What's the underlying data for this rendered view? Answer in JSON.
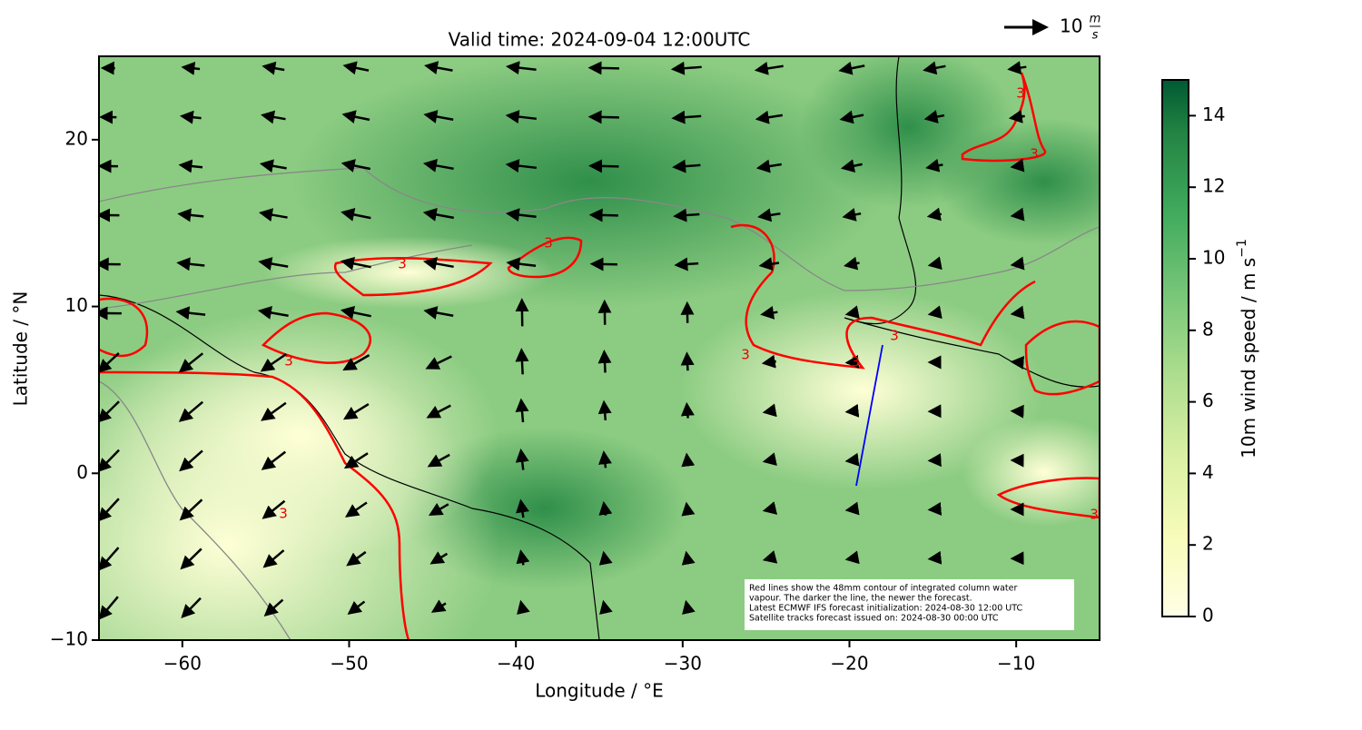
{
  "map": {
    "title": "Valid time: 2024-09-04 12:00UTC",
    "x_label": "Longitude / °E",
    "y_label": "Latitude / °N",
    "xlim": [
      -65,
      -5
    ],
    "xticks": [
      {
        "value": -60,
        "label": "−60"
      },
      {
        "value": -50,
        "label": "−50"
      },
      {
        "value": -40,
        "label": "−40"
      },
      {
        "value": -30,
        "label": "−30"
      },
      {
        "value": -20,
        "label": "−20"
      },
      {
        "value": -10,
        "label": "−10"
      }
    ],
    "ylim": [
      -10,
      25
    ],
    "yticks": [
      {
        "value": -10,
        "label": "−10"
      },
      0,
      10,
      20
    ],
    "contour_label": "3",
    "key": {
      "label": "10",
      "unit_top": "m",
      "unit_bottom": "s"
    },
    "note": [
      "Red lines show the 48mm contour of integrated column water",
      "vapour. The darker the line, the newer the forecast.",
      "Latest ECMWF IFS forecast initialization: 2024-08-30 12:00 UTC",
      "Satellite tracks forecast issued on: 2024-08-30 00:00 UTC"
    ],
    "colorbar": {
      "label": "10m wind speed / m s",
      "label_sup": "−1",
      "lim": [
        0,
        15
      ],
      "ticks": [
        0,
        2,
        4,
        6,
        8,
        10,
        12,
        14
      ]
    }
  }
}
